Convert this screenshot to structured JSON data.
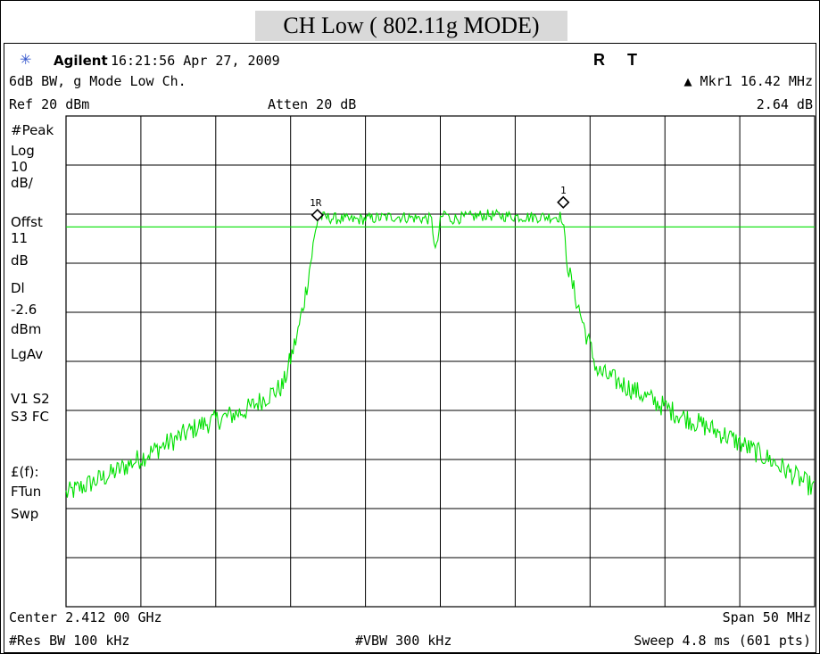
{
  "title": "CH Low ( 802.11g MODE)",
  "header": {
    "brand": "Agilent",
    "timestamp": "16:21:56  Apr 27, 2009",
    "flags": [
      "R",
      "T"
    ],
    "measurement": "6dB BW, g Mode Low Ch.",
    "marker_label": "▲ Mkr1  16.42 MHz",
    "marker_value": "2.64 dB",
    "ref_level": "Ref 20 dBm",
    "attenuation": "Atten 20 dB"
  },
  "side_labels": [
    "#Peak",
    "Log",
    "10",
    "dB/",
    "Offst",
    "11",
    "dB",
    "Dl",
    "-2.6",
    "dBm",
    "LgAv",
    "V1  S2",
    "S3  FC",
    "£(f):",
    "FTun",
    "Swp"
  ],
  "footer": {
    "center": "Center 2.412 00 GHz",
    "span": "Span 50 MHz",
    "res_bw": "#Res BW 100 kHz",
    "vbw": "#VBW 300 kHz",
    "sweep": "Sweep 4.8 ms (601 pts)"
  },
  "chart_data": {
    "type": "line",
    "xlim": [
      -25,
      25
    ],
    "ylim": [
      -80,
      20
    ],
    "x_divisions": 10,
    "y_divisions": 10,
    "grid": true,
    "display_line": -2.6,
    "trace_color": "#00e000",
    "grid_color": "#000000",
    "series": [
      {
        "x": [
          -25,
          -22,
          -19,
          -16,
          -13,
          -10.5,
          -9.5,
          -9,
          -8.3,
          -8.2,
          -6,
          -3,
          -0.6,
          -0.3,
          0,
          0.3,
          0.6,
          3,
          6,
          8.1,
          8.2,
          8.6,
          9.5,
          10.5,
          13,
          16,
          19,
          22,
          25
        ],
        "y": [
          -57,
          -53,
          -48,
          -43,
          -40,
          -35,
          -24,
          -16,
          -3,
          -0.5,
          -1.2,
          -0.5,
          -1,
          -8,
          -1.5,
          0.5,
          -1,
          -0.2,
          -0.6,
          -0.5,
          -3,
          -12,
          -22,
          -32,
          -36,
          -41,
          -45,
          -50,
          -56
        ]
      }
    ],
    "markers": [
      {
        "label": "1R",
        "x": -8.21,
        "y": -0.2
      },
      {
        "label": "1",
        "x": 8.21,
        "y": 2.4
      }
    ]
  }
}
